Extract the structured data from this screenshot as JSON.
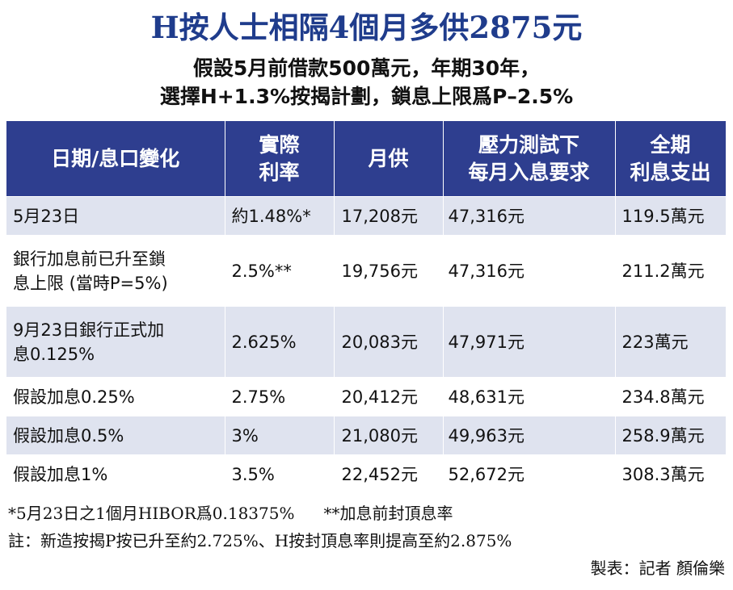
{
  "title": "H按人士相隔4個月多供2875元",
  "subtitle_line1": "假設5月前借款500萬元，年期30年，",
  "subtitle_line2": "選擇H+1.3%按揭計劃，鎖息上限爲P–2.5%",
  "table": {
    "headers": [
      [
        "日期/息口變化"
      ],
      [
        "實際",
        "利率"
      ],
      [
        "月供"
      ],
      [
        "壓力測試下",
        "每月入息要求"
      ],
      [
        "全期",
        "利息支出"
      ]
    ],
    "rows": [
      [
        "5月23日",
        "約1.48%*",
        "17,208元",
        "47,316元",
        "119.5萬元"
      ],
      [
        "銀行加息前已升至鎖\n息上限 (當時P=5%)",
        "2.5%**",
        "19,756元",
        "47,316元",
        "211.2萬元"
      ],
      [
        "9月23日銀行正式加\n息0.125%",
        "2.625%",
        "20,083元",
        "47,971元",
        "223萬元"
      ],
      [
        "假設加息0.25%",
        "2.75%",
        "20,412元",
        "48,631元",
        "234.8萬元"
      ],
      [
        "假設加息0.5%",
        "3%",
        "21,080元",
        "49,963元",
        "258.9萬元"
      ],
      [
        "假設加息1%",
        "3.5%",
        "22,452元",
        "52,672元",
        "308.3萬元"
      ]
    ]
  },
  "footnotes": {
    "note_star": "*5月23日之1個月HIBOR爲0.18375%",
    "note_double_star": "**加息前封頂息率",
    "note": "註：新造按揭P按已升至約2.725%、H按封頂息率則提高至約2.875%",
    "credit": "製表：記者 顏倫樂"
  },
  "colors": {
    "title": "#1f3c8c",
    "header_bg": "#2e3e8f",
    "row_alt_bg": "#dfe3ef"
  }
}
